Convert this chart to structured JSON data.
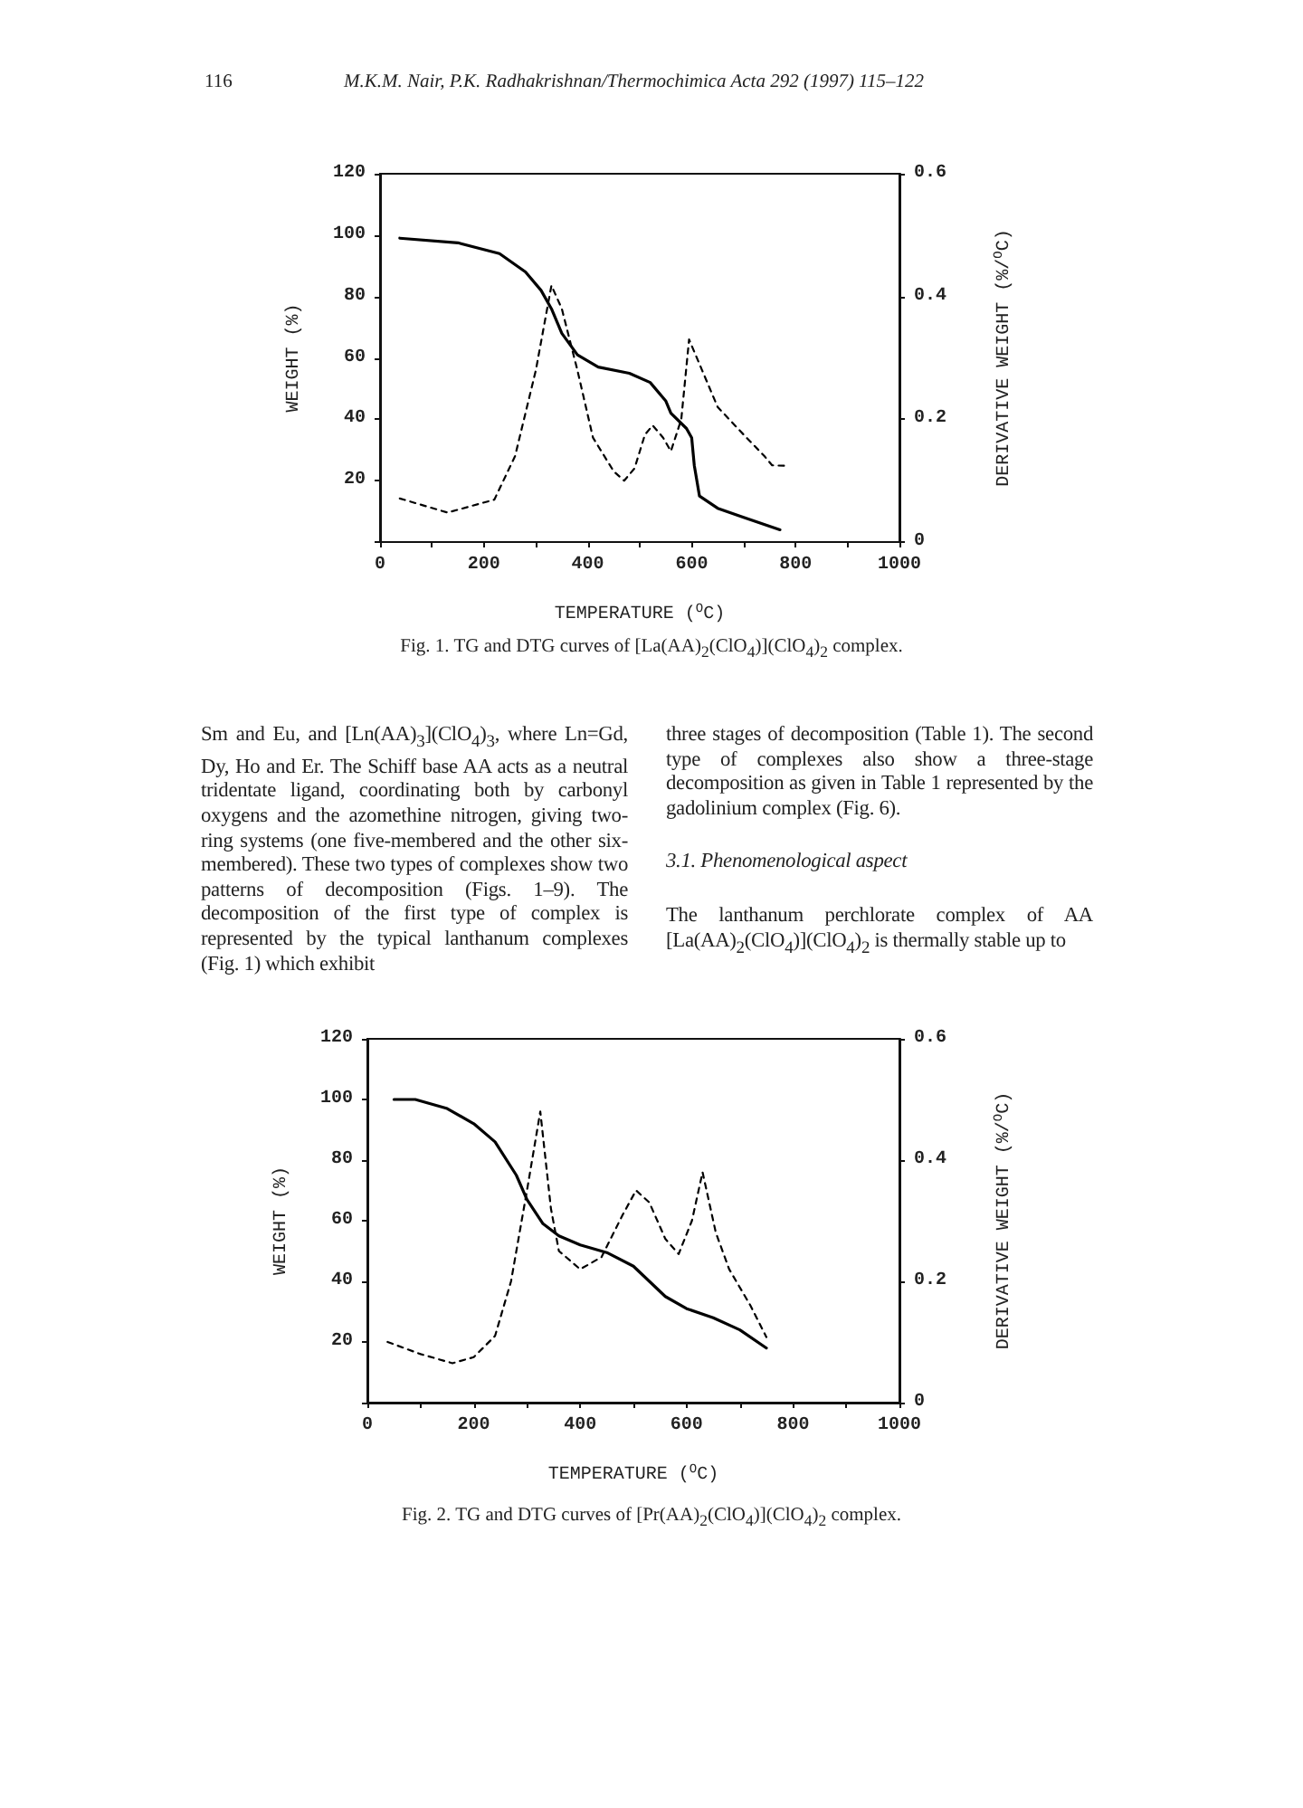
{
  "chart_data": [
    {
      "type": "line",
      "xlabel": "TEMPERATURE ($^{O}$C)",
      "ylabel": "WEIGHT (%)",
      "y2label": "DERIVATIVE WEIGHT (%/$^{O}$C)",
      "xlim": [
        0,
        1000
      ],
      "xticks": [
        0,
        {
          "value": 100,
          "label": null
        },
        200,
        {
          "value": 300,
          "label": null
        },
        400,
        {
          "value": 500,
          "label": null
        },
        600,
        {
          "value": 700,
          "label": null
        },
        800,
        {
          "value": 900,
          "label": null
        },
        1000
      ],
      "ylim": [
        0,
        120
      ],
      "yticks": [
        {
          "value": 0,
          "label": null
        },
        20,
        40,
        60,
        80,
        100,
        120
      ],
      "y2lim": [
        0,
        0.6
      ],
      "y2ticks": [
        0,
        0.2,
        0.4,
        0.6
      ],
      "grid": false,
      "marker": "none",
      "series": [
        {
          "color": "#000000",
          "line_style": "solid",
          "x": [
            38,
            150,
            230,
            280,
            310,
            330,
            350,
            380,
            420,
            480,
            520,
            550,
            560,
            590,
            600,
            605,
            615,
            650,
            700,
            770
          ],
          "values": [
            99,
            97.5,
            94,
            88,
            82,
            76,
            68,
            61,
            57,
            55,
            52,
            46,
            42,
            37,
            34,
            25,
            15,
            11,
            8,
            4
          ]
        },
        {
          "color": "#000000",
          "line_style": "dashed",
          "axis": "y2",
          "x": [
            38,
            130,
            220,
            260,
            300,
            330,
            350,
            380,
            410,
            450,
            470,
            490,
            510,
            525,
            545,
            560,
            580,
            595,
            620,
            650,
            700,
            740,
            755,
            785
          ],
          "values": [
            0.071,
            0.048,
            0.069,
            0.14,
            0.28,
            0.418,
            0.38,
            0.28,
            0.17,
            0.115,
            0.1,
            0.12,
            0.175,
            0.19,
            0.17,
            0.148,
            0.2,
            0.33,
            0.28,
            0.22,
            0.175,
            0.14,
            0.125,
            0.124
          ]
        }
      ],
      "annotations": [
        "116",
        "M.K.M. Nair, P.K. Radhakrishnan/Thermochimica Acta 292 (1997) 115–122",
        "Fig. 1. TG and DTG curves of [La(AA)$_{2}$(ClO$_{4}$)](ClO$_{4}$)$_{2}$ complex.",
        "Sm and Eu, and [Ln(AA)$_{3}$](ClO$_{4}$)$_{3}$, where Ln=Gd, Dy, Ho and Er. The Schiff base AA acts as a neutral tridentate ligand, coordinating both by carbonyl oxygens and the azomethine nitrogen, giving two-ring systems (one five-membered and the other six-membered). These two types of complexes show two patterns of decomposition (Figs. 1–9). The decomposition of the first type of complex is represented by the typical lanthanum complexes (Fig. 1) which exhibit",
        "three stages of decomposition (Table 1). The second type of complexes also show a three-stage decomposition as given in Table 1 represented by the gadolinium complex (Fig. 6).",
        "3.1. Phenomenological aspect",
        "The lanthanum perchlorate complex of AA [La(AA)$_{2}$(ClO$_{4}$)](ClO$_{4}$)$_{2}$ is thermally stable up to"
      ]
    },
    {
      "type": "line",
      "xlabel": "TEMPERATURE ($^{O}$C)",
      "ylabel": "WEIGHT (%)",
      "y2label": "DERIVATIVE WEIGHT (%/$^{O}$C)",
      "xlim": [
        0,
        1000
      ],
      "xticks": [
        0,
        {
          "value": 100,
          "label": null
        },
        200,
        {
          "value": 300,
          "label": null
        },
        400,
        {
          "value": 500,
          "label": null
        },
        600,
        {
          "value": 700,
          "label": null
        },
        800,
        {
          "value": 900,
          "label": null
        },
        1000
      ],
      "ylim": [
        0,
        120
      ],
      "yticks": [
        {
          "value": 0,
          "label": null
        },
        20,
        40,
        60,
        80,
        100,
        120
      ],
      "y2lim": [
        0,
        0.6
      ],
      "y2ticks": [
        0,
        0.2,
        0.4,
        0.6
      ],
      "grid": false,
      "marker": "none",
      "series": [
        {
          "color": "#000000",
          "line_style": "solid",
          "x": [
            50,
            90,
            150,
            200,
            240,
            280,
            300,
            330,
            360,
            400,
            450,
            500,
            530,
            560,
            600,
            650,
            700,
            750
          ],
          "values": [
            100,
            100,
            97,
            92,
            86,
            75,
            67,
            59,
            55,
            52,
            49.5,
            45,
            40,
            35,
            31,
            28,
            24,
            18
          ]
        },
        {
          "color": "#000000",
          "line_style": "dashed",
          "axis": "y2",
          "x": [
            38,
            100,
            160,
            200,
            240,
            270,
            300,
            325,
            345,
            360,
            400,
            440,
            480,
            505,
            530,
            560,
            585,
            610,
            630,
            655,
            680,
            720,
            750
          ],
          "values": [
            0.1,
            0.08,
            0.065,
            0.075,
            0.11,
            0.2,
            0.35,
            0.48,
            0.32,
            0.25,
            0.22,
            0.24,
            0.31,
            0.35,
            0.33,
            0.27,
            0.245,
            0.3,
            0.38,
            0.28,
            0.22,
            0.16,
            0.108
          ]
        }
      ],
      "annotations": [
        "Fig. 2. TG and DTG curves of [Pr(AA)$_{2}$(ClO$_{4}$)](ClO$_{4}$)$_{2}$ complex."
      ]
    }
  ]
}
